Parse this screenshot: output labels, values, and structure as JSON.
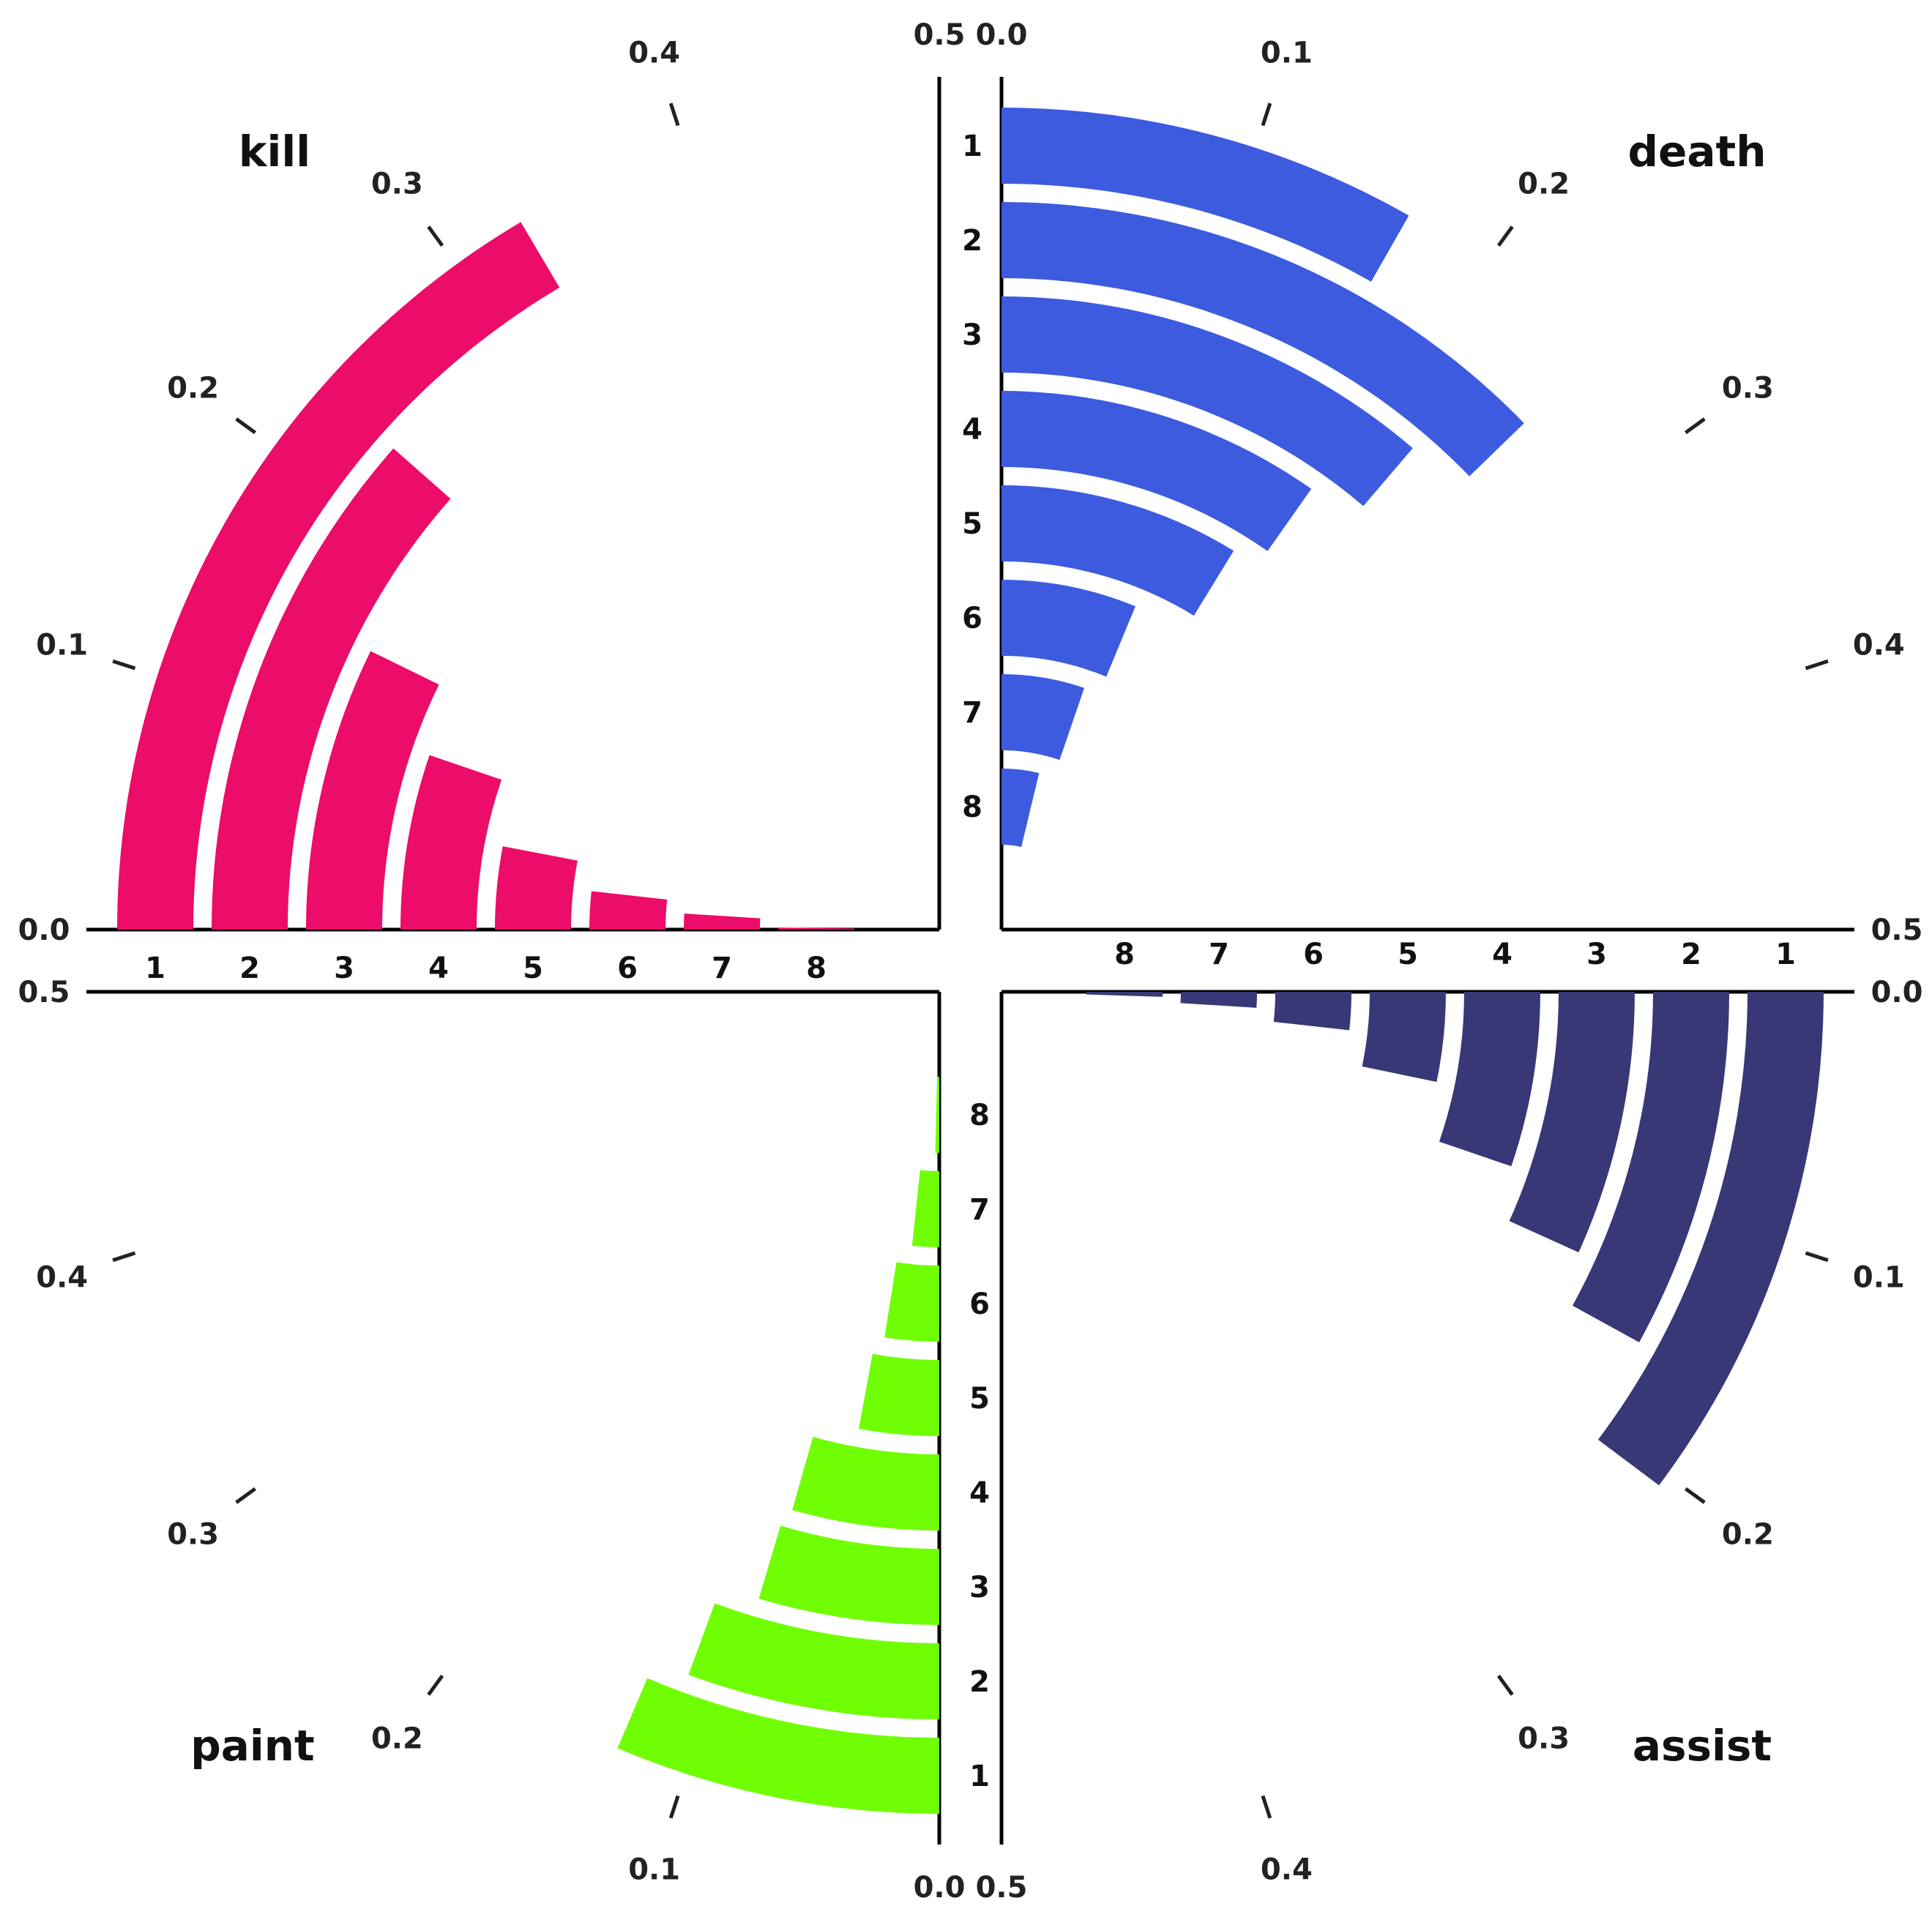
{
  "chart_data": [
    {
      "type": "bar",
      "name": "kill",
      "title": "kill",
      "color": "#EC0C69",
      "categories": [
        "1",
        "2",
        "3",
        "4",
        "5",
        "6",
        "7",
        "8"
      ],
      "values": [
        0.33,
        0.23,
        0.145,
        0.105,
        0.06,
        0.035,
        0.02,
        0.004
      ],
      "ylim": [
        0,
        0.5
      ],
      "ticks": [
        "0.0",
        "0.1",
        "0.2",
        "0.3",
        "0.4",
        "0.5"
      ]
    },
    {
      "type": "bar",
      "name": "death",
      "title": "death",
      "color": "#3D5BDF",
      "categories": [
        "1",
        "2",
        "3",
        "4",
        "5",
        "6",
        "7",
        "8"
      ],
      "values": [
        0.165,
        0.255,
        0.225,
        0.195,
        0.175,
        0.125,
        0.105,
        0.075
      ],
      "ylim": [
        0,
        0.5
      ],
      "ticks": [
        "0.0",
        "0.1",
        "0.2",
        "0.3",
        "0.4",
        "0.5"
      ]
    },
    {
      "type": "bar",
      "name": "paint",
      "title": "paint",
      "color": "#70FE04",
      "categories": [
        "1",
        "2",
        "3",
        "4",
        "5",
        "6",
        "7",
        "8"
      ],
      "values": [
        0.128,
        0.112,
        0.092,
        0.088,
        0.058,
        0.05,
        0.034,
        0.008
      ],
      "ylim": [
        0,
        0.5
      ],
      "ticks": [
        "0.0",
        "0.1",
        "0.2",
        "0.3",
        "0.4",
        "0.5"
      ]
    },
    {
      "type": "bar",
      "name": "assist",
      "title": "assist",
      "color": "#383877",
      "categories": [
        "1",
        "2",
        "3",
        "4",
        "5",
        "6",
        "7",
        "8"
      ],
      "values": [
        0.205,
        0.16,
        0.135,
        0.105,
        0.065,
        0.035,
        0.02,
        0.01
      ],
      "ylim": [
        0,
        0.5
      ],
      "ticks": [
        "0.0",
        "0.1",
        "0.2",
        "0.3",
        "0.4",
        "0.5"
      ]
    }
  ]
}
